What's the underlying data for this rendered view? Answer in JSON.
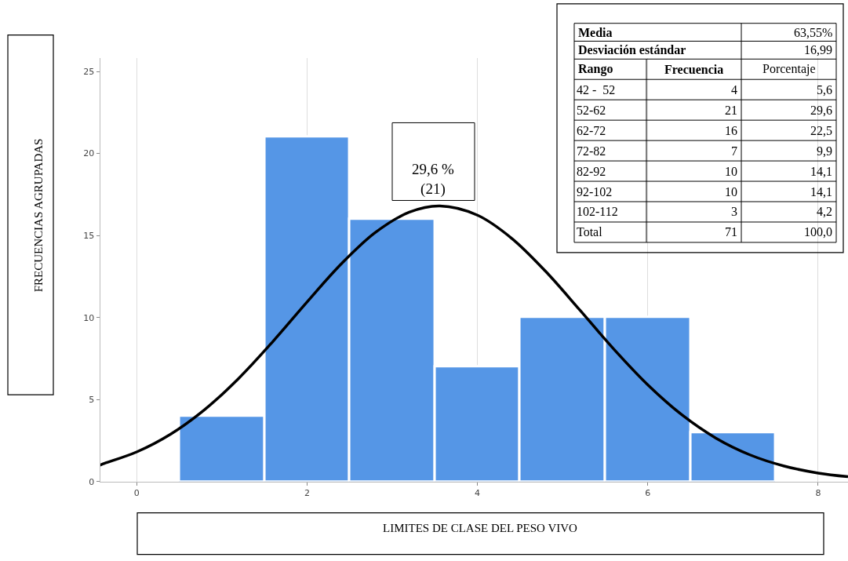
{
  "chart_data": {
    "type": "histogram",
    "xlabel": "LIMITES DE CLASE DEL PESO VIVO",
    "ylabel": "FRECUENCIAS AGRUPADAS",
    "bins": [
      0.5,
      1.5,
      2.5,
      3.5,
      4.5,
      5.5,
      6.5,
      7.5
    ],
    "values": [
      4,
      21,
      16,
      7,
      10,
      10,
      3
    ],
    "color": "#5596e6",
    "series": [
      {
        "type": "line",
        "color": "#000000",
        "x": [
          -0.43,
          -0.4,
          0,
          0.4,
          0.8,
          1.2,
          1.6,
          2.0,
          2.4,
          2.8,
          3.2,
          3.56,
          4.0,
          4.4,
          4.8,
          5.2,
          5.6,
          6.0,
          6.4,
          6.8,
          7.2,
          7.6,
          8.0,
          8.35
        ],
        "values": [
          1.0,
          1.07,
          1.81,
          2.9,
          4.4,
          6.31,
          8.55,
          10.95,
          13.26,
          15.18,
          16.42,
          16.8,
          16.24,
          14.84,
          12.82,
          10.47,
          8.08,
          5.9,
          4.07,
          2.65,
          1.63,
          0.95,
          0.52,
          0.3
        ]
      }
    ],
    "xlim": [
      -0.43,
      8.35
    ],
    "ylim": [
      0,
      25.8
    ],
    "xticks": [
      0,
      2,
      4,
      6,
      8
    ],
    "yticks": [
      0,
      5,
      10,
      15,
      20,
      25
    ],
    "grid": "x",
    "annotations": [
      "29,6 %\n(21)",
      "Media",
      "63,55%",
      "Desviación estándar",
      "16,99",
      "Rango",
      "Frecuencia",
      "Porcentaje",
      "42 -  52",
      "52-62",
      "62-72",
      "72-82",
      "82-92",
      "92-102",
      "102-112",
      "4",
      "21",
      "16",
      "7",
      "10",
      "10",
      "3",
      "5,6",
      "29,6",
      "22,5",
      "9,9",
      "14,1",
      "14,1",
      "4,2",
      "Total",
      "71",
      "100,0"
    ]
  }
}
